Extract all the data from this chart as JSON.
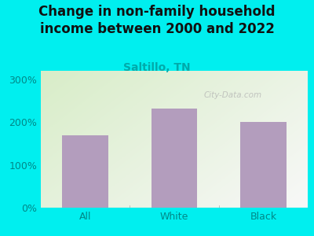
{
  "title": "Change in non-family household\nincome between 2000 and 2022",
  "subtitle": "Saltillo, TN",
  "categories": [
    "All",
    "White",
    "Black"
  ],
  "values": [
    170,
    232,
    200
  ],
  "bar_color": "#b39dbd",
  "outer_bg": "#00efef",
  "plot_bg_topleft": "#d8edc8",
  "plot_bg_right": "#f8f8f8",
  "title_color": "#1a1a1a",
  "subtitle_color": "#00aaaa",
  "tick_label_color": "#008888",
  "yticks": [
    0,
    100,
    200,
    300
  ],
  "ylim": [
    0,
    320
  ],
  "watermark": "City-Data.com",
  "title_fontsize": 12,
  "subtitle_fontsize": 10,
  "tick_fontsize": 9
}
